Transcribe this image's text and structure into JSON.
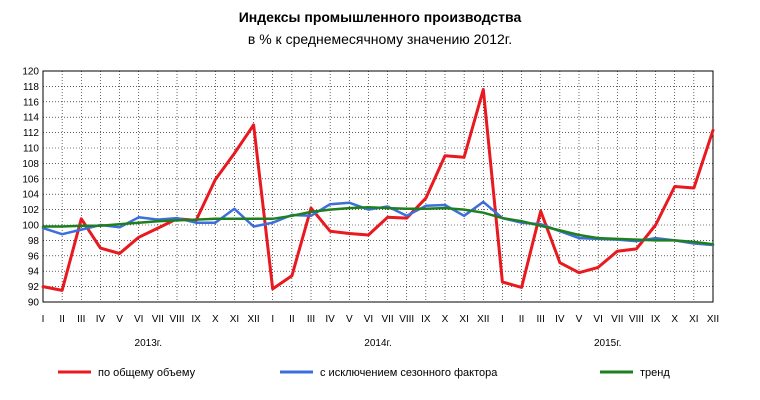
{
  "chart_data": {
    "type": "line",
    "title": "Индексы промышленного производства",
    "subtitle": "в % к среднемесячному значению 2012г.",
    "ylim": [
      90,
      120
    ],
    "yticks": [
      "90",
      "92",
      "94",
      "96",
      "98",
      "100",
      "102",
      "104",
      "106",
      "108",
      "110",
      "112",
      "114",
      "116",
      "118",
      "120"
    ],
    "categories": [
      "I",
      "II",
      "III",
      "IV",
      "V",
      "VI",
      "VII",
      "VIII",
      "IX",
      "X",
      "XI",
      "XII",
      "I",
      "II",
      "III",
      "IV",
      "V",
      "VI",
      "VII",
      "VIII",
      "IX",
      "X",
      "XI",
      "XII",
      "I",
      "II",
      "III",
      "IV",
      "V",
      "VI",
      "VII",
      "VIII",
      "IX",
      "X",
      "XI",
      "XII"
    ],
    "years": [
      "2013г.",
      "2014г.",
      "2015г."
    ],
    "grid": true,
    "legend_position": "bottom",
    "series": [
      {
        "name": "по общему объему",
        "color": "#e8191f",
        "values": [
          92.0,
          91.5,
          100.8,
          97.0,
          96.3,
          98.4,
          99.6,
          100.8,
          100.6,
          105.9,
          109.3,
          113.0,
          91.7,
          93.4,
          102.2,
          99.2,
          98.9,
          98.7,
          101.0,
          100.9,
          103.5,
          109.0,
          108.8,
          117.6,
          92.6,
          91.9,
          101.8,
          95.1,
          93.8,
          94.5,
          96.6,
          96.9,
          100.0,
          105.0,
          104.8,
          112.3
        ]
      },
      {
        "name": "с исключением сезонного фактора",
        "color": "#3c6fdb",
        "values": [
          99.6,
          98.8,
          99.4,
          100.0,
          99.7,
          101.0,
          100.7,
          100.9,
          100.3,
          100.3,
          102.1,
          99.8,
          100.3,
          101.3,
          101.2,
          102.7,
          102.9,
          102.0,
          102.4,
          101.2,
          102.5,
          102.6,
          101.2,
          103.0,
          100.9,
          100.3,
          100.1,
          99.2,
          98.3,
          98.2,
          98.1,
          97.9,
          98.3,
          98.0,
          97.6,
          97.4
        ]
      },
      {
        "name": "тренд",
        "color": "#1f7f1f",
        "values": [
          99.8,
          99.8,
          99.9,
          99.9,
          100.1,
          100.3,
          100.5,
          100.6,
          100.7,
          100.8,
          100.8,
          100.8,
          100.8,
          101.2,
          101.7,
          102.0,
          102.2,
          102.3,
          102.2,
          102.1,
          102.1,
          102.2,
          102.0,
          101.6,
          100.9,
          100.5,
          99.9,
          99.3,
          98.7,
          98.3,
          98.2,
          98.1,
          98.0,
          98.0,
          97.8,
          97.5
        ]
      }
    ]
  }
}
